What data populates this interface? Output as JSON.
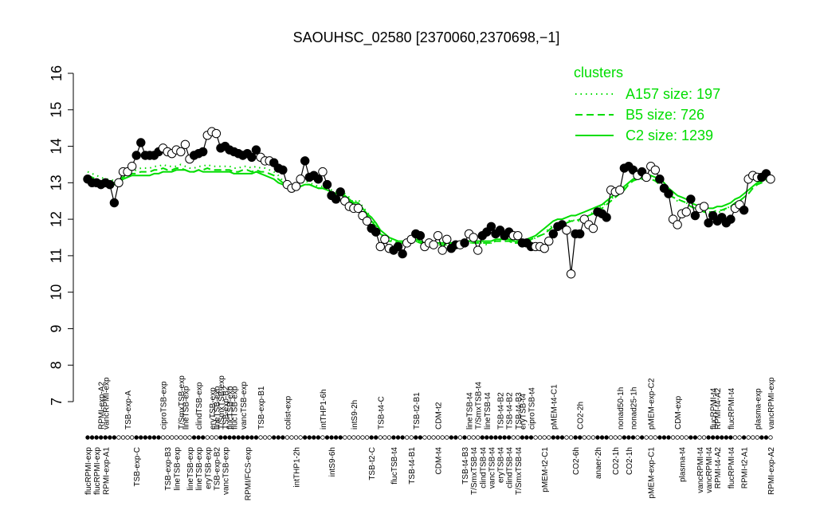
{
  "chart_data": {
    "type": "line",
    "title": "SAOUHSC_02580 [2370060,2370698,−1]",
    "xlabel": "",
    "ylabel": "",
    "ylim": [
      7,
      16
    ],
    "yticks": [
      7,
      8,
      9,
      10,
      11,
      12,
      13,
      14,
      15,
      16
    ],
    "grid": false,
    "legend": {
      "title": "clusters",
      "position": "top-right",
      "color": "#00dd00",
      "entries": [
        {
          "label": "A157 size: 197",
          "style": "dotted"
        },
        {
          "label": "B5 size: 726",
          "style": "dashed"
        },
        {
          "label": "C2 size: 1239",
          "style": "solid"
        }
      ]
    },
    "colors": {
      "main": "#000000",
      "clusters": "#00dd00"
    },
    "top_labels": [
      {
        "idx": 3,
        "text": "RPMI-exp-A2"
      },
      {
        "idx": 4,
        "text": "vancRPMI-exp"
      },
      {
        "idx": 9,
        "text": "TSB-exp-A"
      },
      {
        "idx": 17,
        "text": "ciproTSB-exp"
      },
      {
        "idx": 21,
        "text": "T/SmxTSB-exp"
      },
      {
        "idx": 22,
        "text": "lineTSB-exp"
      },
      {
        "idx": 25,
        "text": "clindTSB-exp"
      },
      {
        "idx": 28,
        "text": "eryTSB-exp"
      },
      {
        "idx": 29,
        "text": "lineTSB-exp"
      },
      {
        "idx": 30,
        "text": "T/SmxTSB-exp"
      },
      {
        "idx": 31,
        "text": "TSB-exp-B2"
      },
      {
        "idx": 32,
        "text": "flucTSB-exp"
      },
      {
        "idx": 33,
        "text": "flucTSB-exp"
      },
      {
        "idx": 35,
        "text": "vancTSB-exp"
      },
      {
        "idx": 39,
        "text": "TSB-exp-B1"
      },
      {
        "idx": 45,
        "text": "colist-exp"
      },
      {
        "idx": 53,
        "text": "intTHP1-6h"
      },
      {
        "idx": 60,
        "text": "intS9-2h"
      },
      {
        "idx": 66,
        "text": "TSB-t4-C"
      },
      {
        "idx": 74,
        "text": "TSB-t2-B1"
      },
      {
        "idx": 79,
        "text": "CDM-t2"
      },
      {
        "idx": 86,
        "text": "lineTSB-t4"
      },
      {
        "idx": 88,
        "text": "T/SmxTSB-t4"
      },
      {
        "idx": 90,
        "text": "lineTSB-t4"
      },
      {
        "idx": 93,
        "text": "TSB-t4-B2"
      },
      {
        "idx": 95,
        "text": "TSB-t4-B2"
      },
      {
        "idx": 97,
        "text": "TSB-t4-B3"
      },
      {
        "idx": 98,
        "text": "eryTSB-t4"
      },
      {
        "idx": 100,
        "text": "ciproTSB-t4"
      },
      {
        "idx": 105,
        "text": "pMEM-t4-C1"
      },
      {
        "idx": 111,
        "text": "CO2-2h"
      },
      {
        "idx": 120,
        "text": "nonad50-1h"
      },
      {
        "idx": 123,
        "text": "nonad25-1h"
      },
      {
        "idx": 127,
        "text": "pMEM-exp-C2"
      },
      {
        "idx": 133,
        "text": "CDM-exp"
      },
      {
        "idx": 141,
        "text": "flucRPMI-t4"
      },
      {
        "idx": 142,
        "text": "RPMI-t4-A2"
      },
      {
        "idx": 145,
        "text": "flucRPMI-t4"
      },
      {
        "idx": 151,
        "text": "plasma-exp"
      },
      {
        "idx": 154,
        "text": "vancRPMI-exp"
      }
    ],
    "bottom_labels": [
      {
        "idx": 0,
        "text": "flucRPMI-exp"
      },
      {
        "idx": 2,
        "text": "flucRPMI-exp"
      },
      {
        "idx": 4,
        "text": "RPMI-exp-A1"
      },
      {
        "idx": 11,
        "text": "TSB-exp-C"
      },
      {
        "idx": 18,
        "text": "TSB-exp-B3"
      },
      {
        "idx": 20,
        "text": "lineTSB-exp"
      },
      {
        "idx": 23,
        "text": "lineTSB-exp"
      },
      {
        "idx": 25,
        "text": "lineTSB-exp"
      },
      {
        "idx": 27,
        "text": "eryTSB-exp"
      },
      {
        "idx": 29,
        "text": "TSB-exp-B2"
      },
      {
        "idx": 31,
        "text": "vancTSB-exp"
      },
      {
        "idx": 36,
        "text": "RPMI/FCS-exp"
      },
      {
        "idx": 47,
        "text": "intTHP1-2h"
      },
      {
        "idx": 55,
        "text": "intS9-6h"
      },
      {
        "idx": 64,
        "text": "TSB-t2-C"
      },
      {
        "idx": 69,
        "text": "flucTSB-t4"
      },
      {
        "idx": 73,
        "text": "TSB-t4-B1"
      },
      {
        "idx": 79,
        "text": "CDM-t4"
      },
      {
        "idx": 85,
        "text": "TSB-t4-B3"
      },
      {
        "idx": 87,
        "text": "T/SmxTSB-t4"
      },
      {
        "idx": 89,
        "text": "clindTSB-t4"
      },
      {
        "idx": 91,
        "text": "vancTSB-t4"
      },
      {
        "idx": 93,
        "text": "eryTSB-t4"
      },
      {
        "idx": 95,
        "text": "clindTSB-t4"
      },
      {
        "idx": 97,
        "text": "T/SmxTSB-t4"
      },
      {
        "idx": 103,
        "text": "pMEM-t2-C1"
      },
      {
        "idx": 110,
        "text": "CO2-6h"
      },
      {
        "idx": 115,
        "text": "anaer-2h"
      },
      {
        "idx": 119,
        "text": "CO2-1h"
      },
      {
        "idx": 122,
        "text": "CO2-1h"
      },
      {
        "idx": 127,
        "text": "pMEM-exp-C1"
      },
      {
        "idx": 134,
        "text": "plasma-t4"
      },
      {
        "idx": 138,
        "text": "vancRPMI-t4"
      },
      {
        "idx": 140,
        "text": "vancRPMI-t4"
      },
      {
        "idx": 142,
        "text": "RPMI-t4-A2"
      },
      {
        "idx": 145,
        "text": "flucRPMI-t4"
      },
      {
        "idx": 148,
        "text": "RPMI-t2-A1"
      },
      {
        "idx": 154,
        "text": "RPMI-exp-A2"
      }
    ],
    "series": [
      {
        "name": "",
        "style": "points-line",
        "values": [
          13.1,
          13.0,
          13.0,
          12.95,
          13.0,
          12.95,
          12.45,
          13.0,
          13.3,
          13.3,
          13.45,
          13.75,
          14.1,
          13.75,
          13.75,
          13.75,
          13.85,
          13.95,
          13.85,
          13.8,
          13.9,
          13.85,
          14.05,
          13.65,
          13.75,
          13.8,
          13.85,
          14.3,
          14.4,
          14.35,
          13.95,
          14.0,
          13.9,
          13.85,
          13.8,
          13.75,
          13.8,
          13.7,
          13.9,
          13.7,
          13.6,
          13.6,
          13.55,
          13.4,
          13.35,
          12.95,
          12.85,
          12.9,
          13.1,
          13.6,
          13.15,
          13.2,
          13.1,
          13.3,
          12.95,
          12.65,
          12.55,
          12.75,
          12.5,
          12.35,
          12.3,
          12.3,
          12.1,
          11.95,
          11.75,
          11.65,
          11.25,
          11.45,
          11.2,
          11.15,
          11.25,
          11.05,
          11.35,
          11.45,
          11.6,
          11.55,
          11.25,
          11.35,
          11.3,
          11.55,
          11.15,
          11.45,
          11.2,
          11.3,
          11.3,
          11.35,
          11.6,
          11.5,
          11.15,
          11.55,
          11.65,
          11.8,
          11.6,
          11.7,
          11.55,
          11.65,
          11.55,
          11.55,
          11.35,
          11.35,
          11.25,
          11.25,
          11.25,
          11.2,
          11.4,
          11.6,
          11.8,
          11.85,
          11.7,
          10.5,
          11.6,
          11.6,
          12.0,
          11.85,
          11.75,
          12.2,
          12.15,
          12.05,
          12.8,
          12.75,
          12.8,
          13.4,
          13.45,
          13.35,
          13.2,
          13.3,
          13.15,
          13.45,
          13.35,
          13.1,
          12.85,
          12.7,
          12.0,
          11.85,
          12.15,
          12.2,
          12.55,
          12.1,
          12.3,
          12.35,
          11.9,
          12.1,
          11.95,
          12.05,
          11.9,
          12.0,
          12.3,
          12.4,
          12.25,
          13.1,
          13.2,
          13.15,
          13.15,
          13.25,
          13.1
        ],
        "filled": [
          true,
          true,
          true,
          true,
          true,
          true,
          true,
          false,
          false,
          false,
          false,
          true,
          true,
          true,
          true,
          true,
          true,
          false,
          false,
          false,
          false,
          false,
          false,
          false,
          true,
          true,
          true,
          false,
          false,
          false,
          true,
          true,
          true,
          true,
          true,
          true,
          true,
          true,
          true,
          false,
          false,
          false,
          true,
          true,
          true,
          false,
          false,
          false,
          false,
          true,
          true,
          true,
          true,
          false,
          true,
          true,
          true,
          true,
          false,
          false,
          false,
          false,
          false,
          false,
          true,
          true,
          false,
          false,
          false,
          true,
          true,
          true,
          false,
          false,
          true,
          true,
          false,
          false,
          false,
          false,
          false,
          false,
          true,
          true,
          false,
          true,
          false,
          false,
          false,
          true,
          true,
          true,
          true,
          true,
          true,
          true,
          false,
          false,
          true,
          true,
          true,
          false,
          false,
          false,
          false,
          true,
          true,
          true,
          false,
          false,
          true,
          true,
          false,
          false,
          false,
          true,
          true,
          true,
          false,
          false,
          false,
          true,
          true,
          true,
          false,
          true,
          false,
          false,
          false,
          true,
          true,
          true,
          false,
          false,
          false,
          false,
          true,
          true,
          false,
          false,
          true,
          true,
          true,
          true,
          true,
          true,
          false,
          false,
          true,
          false,
          false,
          false,
          true,
          true,
          false
        ]
      },
      {
        "name": "A157 size: 197",
        "style": "dotted",
        "values": [
          13.3,
          13.25,
          13.2,
          13.15,
          13.1,
          13.1,
          13.05,
          13.1,
          13.2,
          13.25,
          13.3,
          13.35,
          13.4,
          13.4,
          13.4,
          13.45,
          13.45,
          13.5,
          13.45,
          13.45,
          13.45,
          13.5,
          13.45,
          13.4,
          13.4,
          13.45,
          13.45,
          13.5,
          13.45,
          13.45,
          13.45,
          13.45,
          13.45,
          13.4,
          13.4,
          13.45,
          13.45,
          13.4,
          13.45,
          13.4,
          13.4,
          13.35,
          13.3,
          13.2,
          13.05,
          12.95,
          12.9,
          12.85,
          12.95,
          13.05,
          13.0,
          12.95,
          12.9,
          12.9,
          12.85,
          12.8,
          12.75,
          12.8,
          12.7,
          12.6,
          12.45,
          12.55,
          12.35,
          12.2,
          12.05,
          11.85,
          11.65,
          11.5,
          11.45,
          11.4,
          11.35,
          11.35,
          11.35,
          11.4,
          11.4,
          11.35,
          11.35,
          11.3,
          11.3,
          11.25,
          11.3,
          11.3,
          11.25,
          11.3,
          11.35,
          11.35,
          11.35,
          11.35,
          11.35,
          11.35,
          11.3,
          11.35,
          11.4,
          11.45,
          11.4,
          11.4,
          11.35,
          11.35,
          11.35,
          11.4,
          11.4,
          11.5,
          11.55,
          11.6,
          11.75,
          11.85,
          11.9,
          11.85,
          11.9,
          12.0,
          11.95,
          11.95,
          12.05,
          12.1,
          12.2,
          12.3,
          12.35,
          12.45,
          12.55,
          12.65,
          12.75,
          12.85,
          13.0,
          13.1,
          13.15,
          13.1,
          13.1,
          13.15,
          13.1,
          13.0,
          12.95,
          12.75,
          12.6,
          12.5,
          12.5,
          12.45,
          12.35,
          12.3,
          12.2,
          12.2,
          12.15,
          12.15,
          12.2,
          12.2,
          12.3,
          12.35,
          12.45,
          12.5,
          12.6,
          12.7,
          12.85,
          12.95,
          13.05,
          13.1,
          13.05
        ]
      },
      {
        "name": "B5 size: 726",
        "style": "dashed",
        "values": [
          13.2,
          13.15,
          13.1,
          13.05,
          13.05,
          13.0,
          13.0,
          13.05,
          13.15,
          13.2,
          13.25,
          13.25,
          13.3,
          13.3,
          13.3,
          13.35,
          13.35,
          13.4,
          13.35,
          13.35,
          13.4,
          13.4,
          13.35,
          13.3,
          13.3,
          13.35,
          13.35,
          13.4,
          13.35,
          13.35,
          13.35,
          13.35,
          13.35,
          13.3,
          13.3,
          13.35,
          13.35,
          13.3,
          13.35,
          13.3,
          13.3,
          13.25,
          13.2,
          13.1,
          13.0,
          12.9,
          12.85,
          12.85,
          12.9,
          12.95,
          12.95,
          12.9,
          12.85,
          12.85,
          12.8,
          12.75,
          12.7,
          12.7,
          12.6,
          12.5,
          12.4,
          12.4,
          12.25,
          12.1,
          11.95,
          11.8,
          11.6,
          11.5,
          11.4,
          11.4,
          11.35,
          11.35,
          11.35,
          11.4,
          11.4,
          11.35,
          11.3,
          11.3,
          11.3,
          11.3,
          11.3,
          11.3,
          11.3,
          11.3,
          11.35,
          11.35,
          11.35,
          11.35,
          11.35,
          11.35,
          11.35,
          11.35,
          11.4,
          11.4,
          11.4,
          11.4,
          11.35,
          11.35,
          11.35,
          11.4,
          11.45,
          11.5,
          11.55,
          11.6,
          11.7,
          11.8,
          11.85,
          11.85,
          11.9,
          11.95,
          11.95,
          12.0,
          12.05,
          12.1,
          12.15,
          12.25,
          12.3,
          12.4,
          12.5,
          12.6,
          12.7,
          12.8,
          12.95,
          13.05,
          13.1,
          13.1,
          13.1,
          13.1,
          13.05,
          12.95,
          12.85,
          12.7,
          12.6,
          12.55,
          12.5,
          12.45,
          12.35,
          12.3,
          12.25,
          12.2,
          12.2,
          12.2,
          12.25,
          12.25,
          12.3,
          12.35,
          12.45,
          12.5,
          12.6,
          12.7,
          12.85,
          12.95,
          13.0,
          13.05,
          13.05
        ]
      },
      {
        "name": "C2 size: 1239",
        "style": "solid",
        "values": [
          13.15,
          13.1,
          13.05,
          13.0,
          13.0,
          12.95,
          12.95,
          13.0,
          13.1,
          13.15,
          13.2,
          13.2,
          13.2,
          13.2,
          13.2,
          13.25,
          13.25,
          13.3,
          13.3,
          13.3,
          13.35,
          13.35,
          13.35,
          13.3,
          13.3,
          13.35,
          13.3,
          13.3,
          13.3,
          13.3,
          13.3,
          13.3,
          13.3,
          13.25,
          13.25,
          13.25,
          13.25,
          13.25,
          13.3,
          13.25,
          13.2,
          13.15,
          13.1,
          13.0,
          12.95,
          12.85,
          12.85,
          12.85,
          12.9,
          12.95,
          12.95,
          12.9,
          12.85,
          12.85,
          12.8,
          12.75,
          12.7,
          12.7,
          12.65,
          12.55,
          12.45,
          12.45,
          12.3,
          12.15,
          12.05,
          11.9,
          11.7,
          11.6,
          11.5,
          11.45,
          11.4,
          11.4,
          11.4,
          11.45,
          11.45,
          11.4,
          11.35,
          11.35,
          11.35,
          11.35,
          11.35,
          11.35,
          11.35,
          11.35,
          11.4,
          11.4,
          11.4,
          11.4,
          11.4,
          11.4,
          11.4,
          11.4,
          11.45,
          11.45,
          11.45,
          11.45,
          11.4,
          11.4,
          11.4,
          11.45,
          11.5,
          11.55,
          11.65,
          11.75,
          11.85,
          11.95,
          12.0,
          12.0,
          12.05,
          12.1,
          12.1,
          12.15,
          12.2,
          12.25,
          12.3,
          12.35,
          12.4,
          12.5,
          12.6,
          12.7,
          12.8,
          12.9,
          13.0,
          13.1,
          13.15,
          13.15,
          13.15,
          13.2,
          13.15,
          13.1,
          13.0,
          12.85,
          12.75,
          12.65,
          12.6,
          12.55,
          12.45,
          12.4,
          12.35,
          12.3,
          12.3,
          12.3,
          12.35,
          12.35,
          12.4,
          12.45,
          12.55,
          12.6,
          12.7,
          12.8,
          12.9,
          13.0,
          13.05,
          13.1,
          13.1
        ]
      }
    ]
  }
}
